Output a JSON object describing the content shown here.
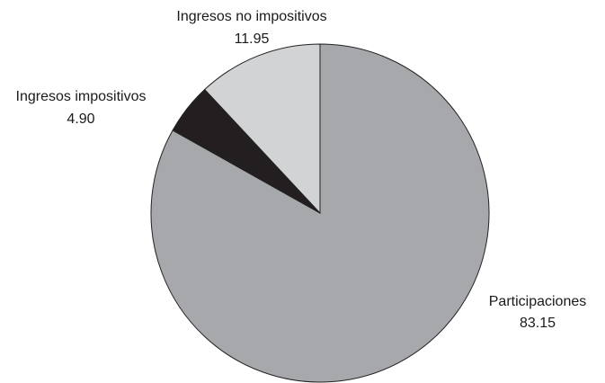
{
  "chart_data": {
    "type": "pie",
    "title": "",
    "start": "top",
    "direction": "clockwise",
    "slices": [
      {
        "label": "Participaciones",
        "value_label": "83.15",
        "value": 83.15,
        "color": "#a7a8ab"
      },
      {
        "label": "Ingresos impositivos",
        "value_label": "4.90",
        "value": 4.9,
        "color": "#231f20"
      },
      {
        "label": "Ingresos no impositivos",
        "value_label": "11.95",
        "value": 11.95,
        "color": "#d1d3d4"
      }
    ]
  }
}
